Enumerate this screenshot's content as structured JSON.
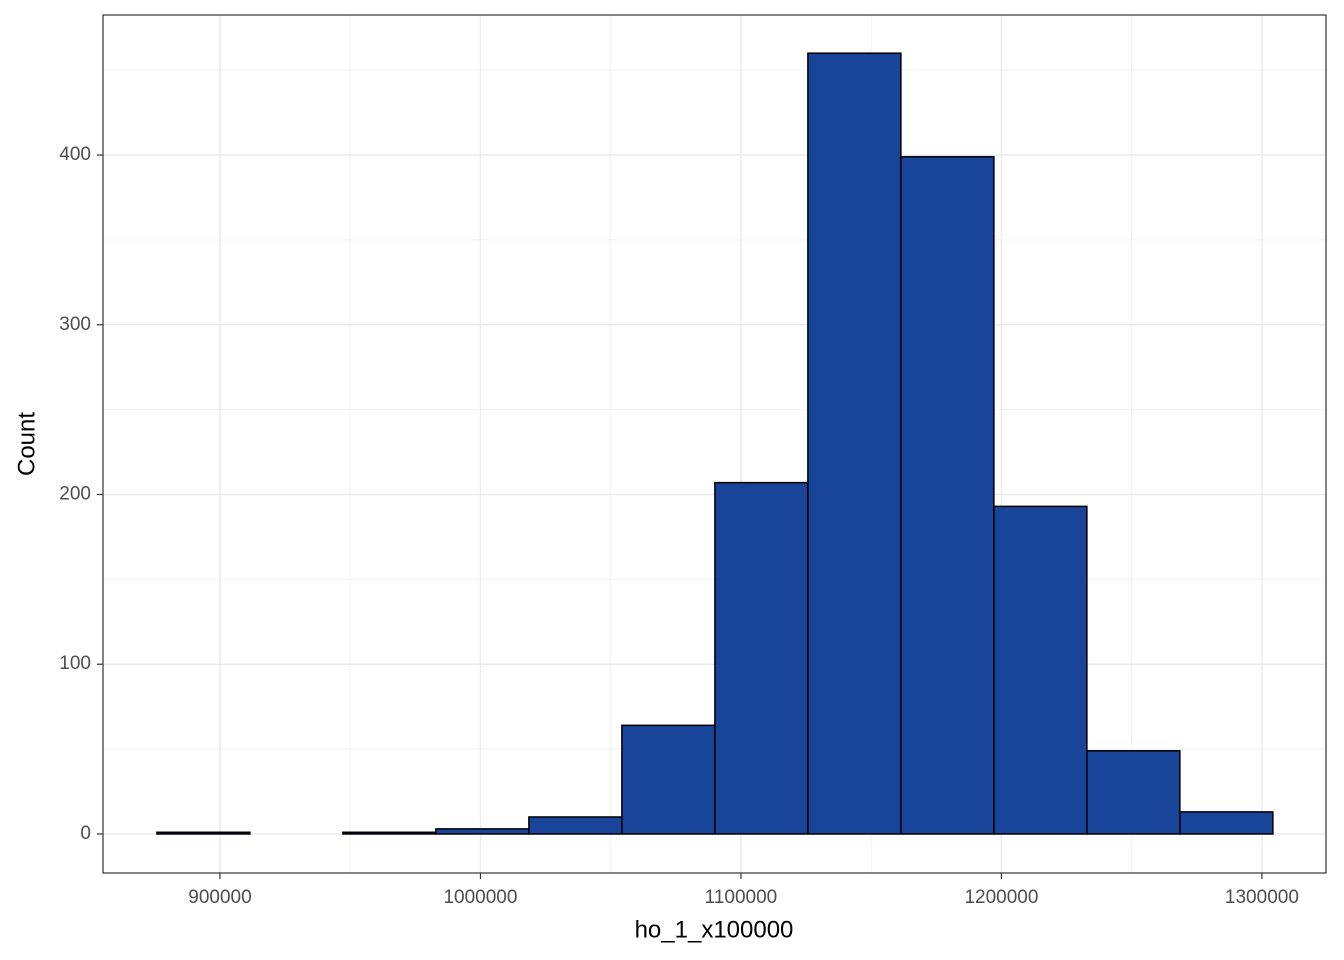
{
  "chart_data": {
    "type": "histogram",
    "x_label": "ho_1_x100000",
    "y_label": "Count",
    "bins": [
      875800,
      911500,
      947200,
      982900,
      1018600,
      1054300,
      1090000,
      1125700,
      1161400,
      1197100,
      1232800,
      1268500,
      1304200
    ],
    "values": [
      1,
      0,
      1,
      3,
      10,
      64,
      207,
      460,
      399,
      193,
      49,
      13
    ],
    "color": "#18449a",
    "edge_color": "#000000",
    "xlim": [
      855100,
      1324600
    ],
    "xticks": [
      900000,
      1000000,
      1100000,
      1200000,
      1300000
    ],
    "x_minor_ticks": [
      950000,
      1050000,
      1150000,
      1250000
    ],
    "ylim": [
      -23,
      482.5
    ],
    "yticks": [
      0,
      100,
      200,
      300,
      400
    ],
    "y_minor_ticks": [
      50,
      150,
      250,
      350,
      450
    ],
    "grid": true
  }
}
